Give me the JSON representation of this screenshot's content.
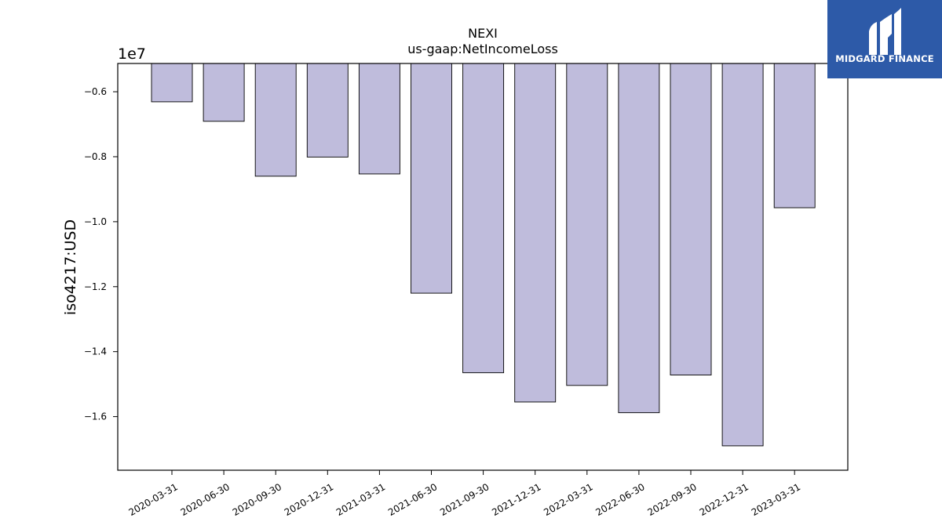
{
  "logo": {
    "text": "MIDGARD FINANCE",
    "background": "#2d5aa8"
  },
  "chart_data": {
    "type": "bar",
    "title": "NEXI",
    "subtitle": "us-gaap:NetIncomeLoss",
    "ylabel": "iso4217:USD",
    "xlabel": "",
    "offset_label": "1e7",
    "categories": [
      "2020-03-31",
      "2020-06-30",
      "2020-09-30",
      "2020-12-31",
      "2021-03-31",
      "2021-06-30",
      "2021-09-30",
      "2021-12-31",
      "2022-03-31",
      "2022-06-30",
      "2022-09-30",
      "2022-12-31",
      "2023-03-31"
    ],
    "values": [
      -6310000,
      -6910000,
      -8600000,
      -8010000,
      -8530000,
      -12200000,
      -14650000,
      -15550000,
      -15040000,
      -15880000,
      -14720000,
      -16900000,
      -9570000
    ],
    "ylim": [
      -17650000,
      -5130000
    ],
    "yticks": [
      -0.6,
      -0.8,
      -1.0,
      -1.2,
      -1.4,
      -1.6
    ],
    "ytick_labels": [
      "−0.6",
      "−0.8",
      "−1.0",
      "−1.2",
      "−1.4",
      "−1.6"
    ],
    "tick_scale": 10000000,
    "bar_color": "#bfbcdc",
    "edge_color": "#000000",
    "grid": false,
    "legend": "none"
  }
}
